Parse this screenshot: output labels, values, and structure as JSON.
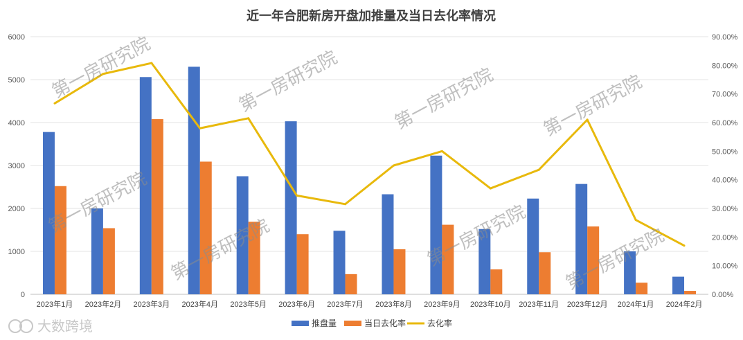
{
  "chart_data": {
    "type": "bar",
    "title": "近一年合肥新房开盘加推量及当日去化率情况",
    "categories": [
      "2023年1月",
      "2023年2月",
      "2023年3月",
      "2023年4月",
      "2023年5月",
      "2023年6月",
      "2023年7月",
      "2023年8月",
      "2023年9月",
      "2023年10月",
      "2023年11月",
      "2023年12月",
      "2024年1月",
      "2024年2月"
    ],
    "series": [
      {
        "name": "推盘量",
        "type": "bar",
        "axis": "left",
        "color": "#4472C4",
        "values": [
          3780,
          2000,
          5060,
          5300,
          2750,
          4030,
          1480,
          2330,
          3230,
          1520,
          2230,
          2570,
          1000,
          410
        ]
      },
      {
        "name": "当日去化率",
        "type": "bar",
        "axis": "left",
        "color": "#ED7D31",
        "values": [
          2520,
          1540,
          4080,
          3090,
          1690,
          1400,
          470,
          1050,
          1620,
          580,
          980,
          1580,
          270,
          80
        ]
      },
      {
        "name": "去化率",
        "type": "line",
        "axis": "right",
        "color": "#E8B90C",
        "values": [
          0.667,
          0.77,
          0.808,
          0.58,
          0.615,
          0.345,
          0.315,
          0.45,
          0.5,
          0.37,
          0.435,
          0.61,
          0.26,
          0.17
        ]
      }
    ],
    "y_left": {
      "min": 0,
      "max": 6000,
      "ticks": [
        "0",
        "1000",
        "2000",
        "3000",
        "4000",
        "5000",
        "6000"
      ]
    },
    "y_right": {
      "min": 0,
      "max": 0.9,
      "ticks": [
        "0.00%",
        "10.00%",
        "20.00%",
        "30.00%",
        "40.00%",
        "50.00%",
        "60.00%",
        "70.00%",
        "80.00%",
        "90.00%"
      ]
    },
    "grid": true,
    "legend_position": "bottom",
    "watermark_text": "第一房研究院",
    "brand_text": "大数跨境"
  }
}
